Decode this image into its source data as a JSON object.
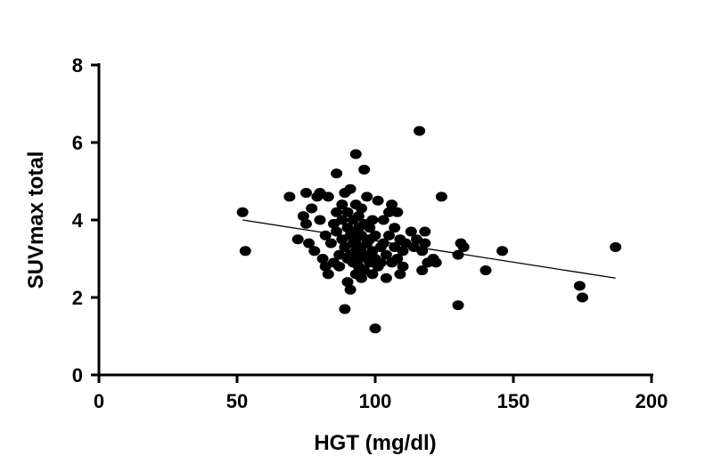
{
  "chart_data": {
    "type": "scatter",
    "title": "",
    "xlabel": "HGT (mg/dl)",
    "ylabel": "SUVmax total",
    "xlim": [
      0,
      200
    ],
    "ylim": [
      0,
      8
    ],
    "xticks": [
      "0",
      "50",
      "100",
      "150",
      "200"
    ],
    "yticks": [
      "0",
      "2",
      "4",
      "6",
      "8"
    ],
    "grid": false,
    "marker_color": "#000000",
    "regression_line": {
      "x": [
        52,
        187
      ],
      "y": [
        4.0,
        2.5
      ]
    },
    "points": [
      [
        52,
        4.2
      ],
      [
        53,
        3.2
      ],
      [
        69,
        4.6
      ],
      [
        72,
        3.5
      ],
      [
        74,
        4.1
      ],
      [
        75,
        4.7
      ],
      [
        75,
        3.9
      ],
      [
        76,
        3.4
      ],
      [
        77,
        4.3
      ],
      [
        78,
        3.2
      ],
      [
        79,
        4.6
      ],
      [
        80,
        4.7
      ],
      [
        80,
        4.0
      ],
      [
        81,
        3.0
      ],
      [
        82,
        2.8
      ],
      [
        82,
        3.6
      ],
      [
        83,
        4.6
      ],
      [
        83,
        2.6
      ],
      [
        84,
        3.4
      ],
      [
        85,
        3.9
      ],
      [
        85,
        2.9
      ],
      [
        86,
        5.2
      ],
      [
        86,
        3.7
      ],
      [
        86,
        4.2
      ],
      [
        87,
        3.1
      ],
      [
        87,
        2.8
      ],
      [
        88,
        4.0
      ],
      [
        88,
        3.5
      ],
      [
        88,
        4.4
      ],
      [
        89,
        1.7
      ],
      [
        89,
        3.3
      ],
      [
        89,
        4.7
      ],
      [
        90,
        2.4
      ],
      [
        90,
        3.0
      ],
      [
        90,
        3.8
      ],
      [
        90,
        4.2
      ],
      [
        91,
        2.2
      ],
      [
        91,
        3.6
      ],
      [
        91,
        4.8
      ],
      [
        91,
        3.1
      ],
      [
        92,
        2.9
      ],
      [
        92,
        3.4
      ],
      [
        92,
        4.0
      ],
      [
        92,
        3.7
      ],
      [
        93,
        5.7
      ],
      [
        93,
        2.6
      ],
      [
        93,
        3.2
      ],
      [
        93,
        3.5
      ],
      [
        93,
        4.4
      ],
      [
        94,
        3.0
      ],
      [
        94,
        3.8
      ],
      [
        94,
        2.8
      ],
      [
        94,
        4.1
      ],
      [
        95,
        3.3
      ],
      [
        95,
        3.6
      ],
      [
        95,
        2.5
      ],
      [
        95,
        4.3
      ],
      [
        96,
        5.3
      ],
      [
        96,
        3.1
      ],
      [
        96,
        3.9
      ],
      [
        96,
        2.7
      ],
      [
        97,
        3.4
      ],
      [
        97,
        3.0
      ],
      [
        97,
        4.6
      ],
      [
        98,
        2.9
      ],
      [
        98,
        3.5
      ],
      [
        98,
        3.8
      ],
      [
        99,
        2.6
      ],
      [
        99,
        3.2
      ],
      [
        99,
        4.0
      ],
      [
        100,
        1.2
      ],
      [
        100,
        3.0
      ],
      [
        100,
        3.6
      ],
      [
        101,
        2.8
      ],
      [
        101,
        4.5
      ],
      [
        102,
        3.3
      ],
      [
        102,
        2.9
      ],
      [
        103,
        3.4
      ],
      [
        103,
        4.0
      ],
      [
        104,
        2.5
      ],
      [
        104,
        3.1
      ],
      [
        105,
        3.6
      ],
      [
        105,
        4.2
      ],
      [
        106,
        2.9
      ],
      [
        106,
        4.4
      ],
      [
        107,
        3.3
      ],
      [
        107,
        3.8
      ],
      [
        108,
        3.0
      ],
      [
        108,
        4.2
      ],
      [
        109,
        2.6
      ],
      [
        109,
        3.5
      ],
      [
        110,
        3.2
      ],
      [
        110,
        2.8
      ],
      [
        111,
        3.4
      ],
      [
        113,
        3.7
      ],
      [
        114,
        3.3
      ],
      [
        115,
        3.5
      ],
      [
        116,
        6.3
      ],
      [
        117,
        3.2
      ],
      [
        117,
        2.7
      ],
      [
        118,
        3.4
      ],
      [
        118,
        3.7
      ],
      [
        119,
        2.9
      ],
      [
        121,
        3.0
      ],
      [
        122,
        2.9
      ],
      [
        124,
        4.6
      ],
      [
        130,
        3.1
      ],
      [
        130,
        1.8
      ],
      [
        131,
        3.4
      ],
      [
        132,
        3.3
      ],
      [
        140,
        2.7
      ],
      [
        146,
        3.2
      ],
      [
        174,
        2.3
      ],
      [
        175,
        2.0
      ],
      [
        187,
        3.3
      ]
    ]
  }
}
